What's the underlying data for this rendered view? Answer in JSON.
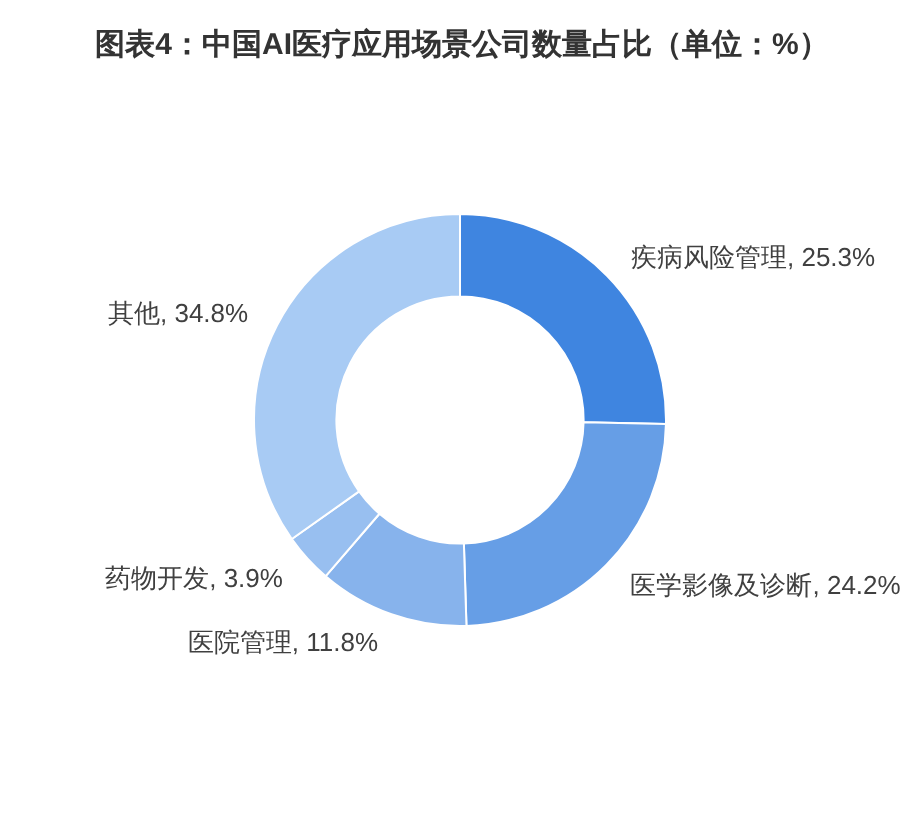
{
  "chart_data": {
    "type": "donut",
    "title": "图表4：中国AI医疗应用场景公司数量占比（单位：%）",
    "categories": [
      "疾病风险管理",
      "医学影像及诊断",
      "医院管理",
      "药物开发",
      "其他"
    ],
    "values": [
      25.3,
      24.2,
      11.8,
      3.9,
      34.8
    ],
    "colors": [
      "#3f85e0",
      "#669ee6",
      "#87b3ec",
      "#98bff0",
      "#a8cbf4"
    ],
    "value_labels": [
      "25.3%",
      "24.2%",
      "11.8%",
      "3.9%",
      "34.8%"
    ]
  }
}
